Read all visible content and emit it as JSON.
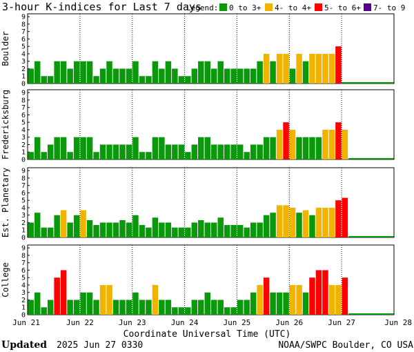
{
  "chart_data": {
    "type": "bar",
    "title": "3-hour K-indices for Last 7 days",
    "legend": {
      "label": "Legend:",
      "items": [
        {
          "text": "0 to 3+",
          "color": "#0a990a"
        },
        {
          "text": "4- to 4+",
          "color": "#f0b400"
        },
        {
          "text": "5- to 6+",
          "color": "#ff0000"
        },
        {
          "text": "7- to 9",
          "color": "#55008a"
        }
      ]
    },
    "xlabel": "Coordinate Universal Time (UTC)",
    "x_ticks": [
      "Jun 21",
      "Jun 22",
      "Jun 23",
      "Jun 24",
      "Jun 25",
      "Jun 26",
      "Jun 27",
      "Jun 28"
    ],
    "y_ticks": [
      "0",
      "1",
      "2",
      "3",
      "4",
      "5",
      "6",
      "7",
      "8",
      "9"
    ],
    "ylim": [
      0,
      9
    ],
    "grid": "dotted vertical at each day",
    "panels": [
      {
        "name": "Boulder",
        "values": [
          2,
          3,
          1,
          1,
          3,
          3,
          2,
          3,
          3,
          3,
          1,
          2,
          3,
          2,
          2,
          2,
          3,
          1,
          1,
          3,
          2,
          3,
          2,
          1,
          1,
          2,
          3,
          3,
          2,
          3,
          2,
          2,
          2,
          2,
          2,
          3,
          4,
          3,
          4,
          4,
          2,
          4,
          3,
          4,
          4,
          4,
          4,
          5
        ]
      },
      {
        "name": "Fredericksburg",
        "values": [
          1,
          3,
          1,
          2,
          3,
          3,
          1,
          3,
          3,
          3,
          1,
          2,
          2,
          2,
          2,
          2,
          3,
          1,
          1,
          3,
          3,
          2,
          2,
          2,
          1,
          2,
          3,
          3,
          2,
          2,
          2,
          2,
          2,
          1,
          2,
          2,
          3,
          3,
          4,
          5,
          4,
          3,
          3,
          3,
          3,
          4,
          4,
          5,
          4
        ]
      },
      {
        "name": "Est. Planetary",
        "values": [
          2,
          3.33,
          1.33,
          1.33,
          3,
          3.67,
          2,
          3,
          3.67,
          2.33,
          1.67,
          2,
          2,
          2,
          2.33,
          2,
          3,
          1.67,
          1.33,
          2.67,
          2,
          2,
          1.33,
          1.33,
          1.33,
          2,
          2.33,
          2,
          2,
          2.67,
          1.67,
          1.67,
          1.67,
          1.33,
          2,
          2,
          3,
          3.33,
          4.33,
          4.33,
          4,
          3.33,
          3.67,
          3,
          4,
          4,
          4,
          5,
          5.33
        ]
      },
      {
        "name": "College",
        "values": [
          2,
          3,
          1,
          2,
          5,
          6,
          2,
          2,
          3,
          3,
          2,
          4,
          4,
          2,
          2,
          2,
          3,
          2,
          2,
          4,
          2,
          2,
          1,
          1,
          1,
          2,
          2,
          3,
          2,
          2,
          1,
          1,
          2,
          2,
          3,
          4,
          5,
          3,
          3,
          3,
          4,
          4,
          3,
          5,
          6,
          6,
          4,
          4,
          5
        ]
      }
    ]
  },
  "footer": {
    "updated_label": "Updated",
    "updated_value": "2025 Jun 27 0330",
    "source": "NOAA/SWPC Boulder, CO USA"
  }
}
